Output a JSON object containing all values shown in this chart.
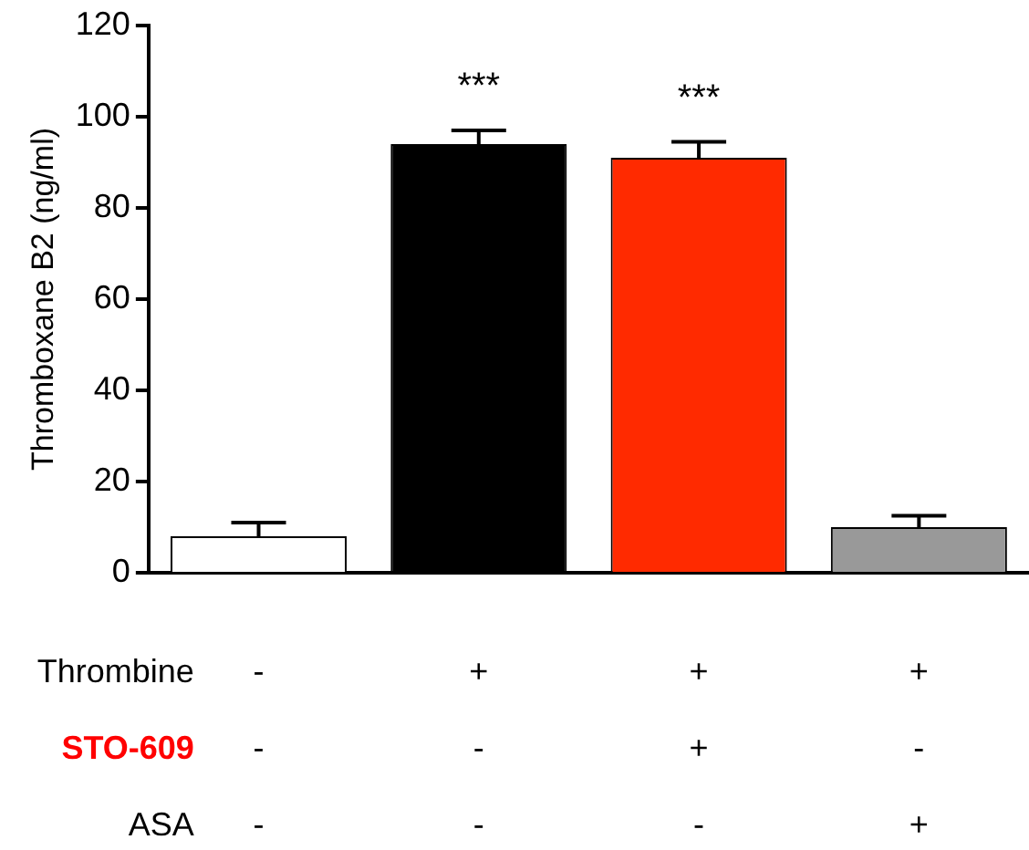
{
  "chart_data": {
    "type": "bar",
    "ylabel": "Thromboxane B2 (ng/ml)",
    "categories": [
      null,
      null,
      null,
      null
    ],
    "series": [
      {
        "colors": [
          "#ffffff",
          "#000000",
          "#ff2a00",
          "#999999"
        ],
        "values": [
          8,
          94,
          91,
          10
        ],
        "errors": [
          [
            8,
            11
          ],
          [
            94,
            97
          ],
          [
            91,
            94.5
          ],
          [
            10,
            12.5
          ]
        ],
        "value_labels": [
          null,
          "***",
          "***",
          null
        ]
      }
    ],
    "ylim": [
      0,
      120
    ],
    "yticks": [
      0,
      20,
      40,
      60,
      80,
      100,
      120
    ],
    "grid": false,
    "legend": false,
    "tick_labels": "y",
    "annotations": [
      "Thrombine",
      "-",
      "+",
      "+",
      "+",
      "STO-609",
      "-",
      "-",
      "+",
      "-",
      "ASA",
      "-",
      "-",
      "-",
      "+"
    ]
  }
}
